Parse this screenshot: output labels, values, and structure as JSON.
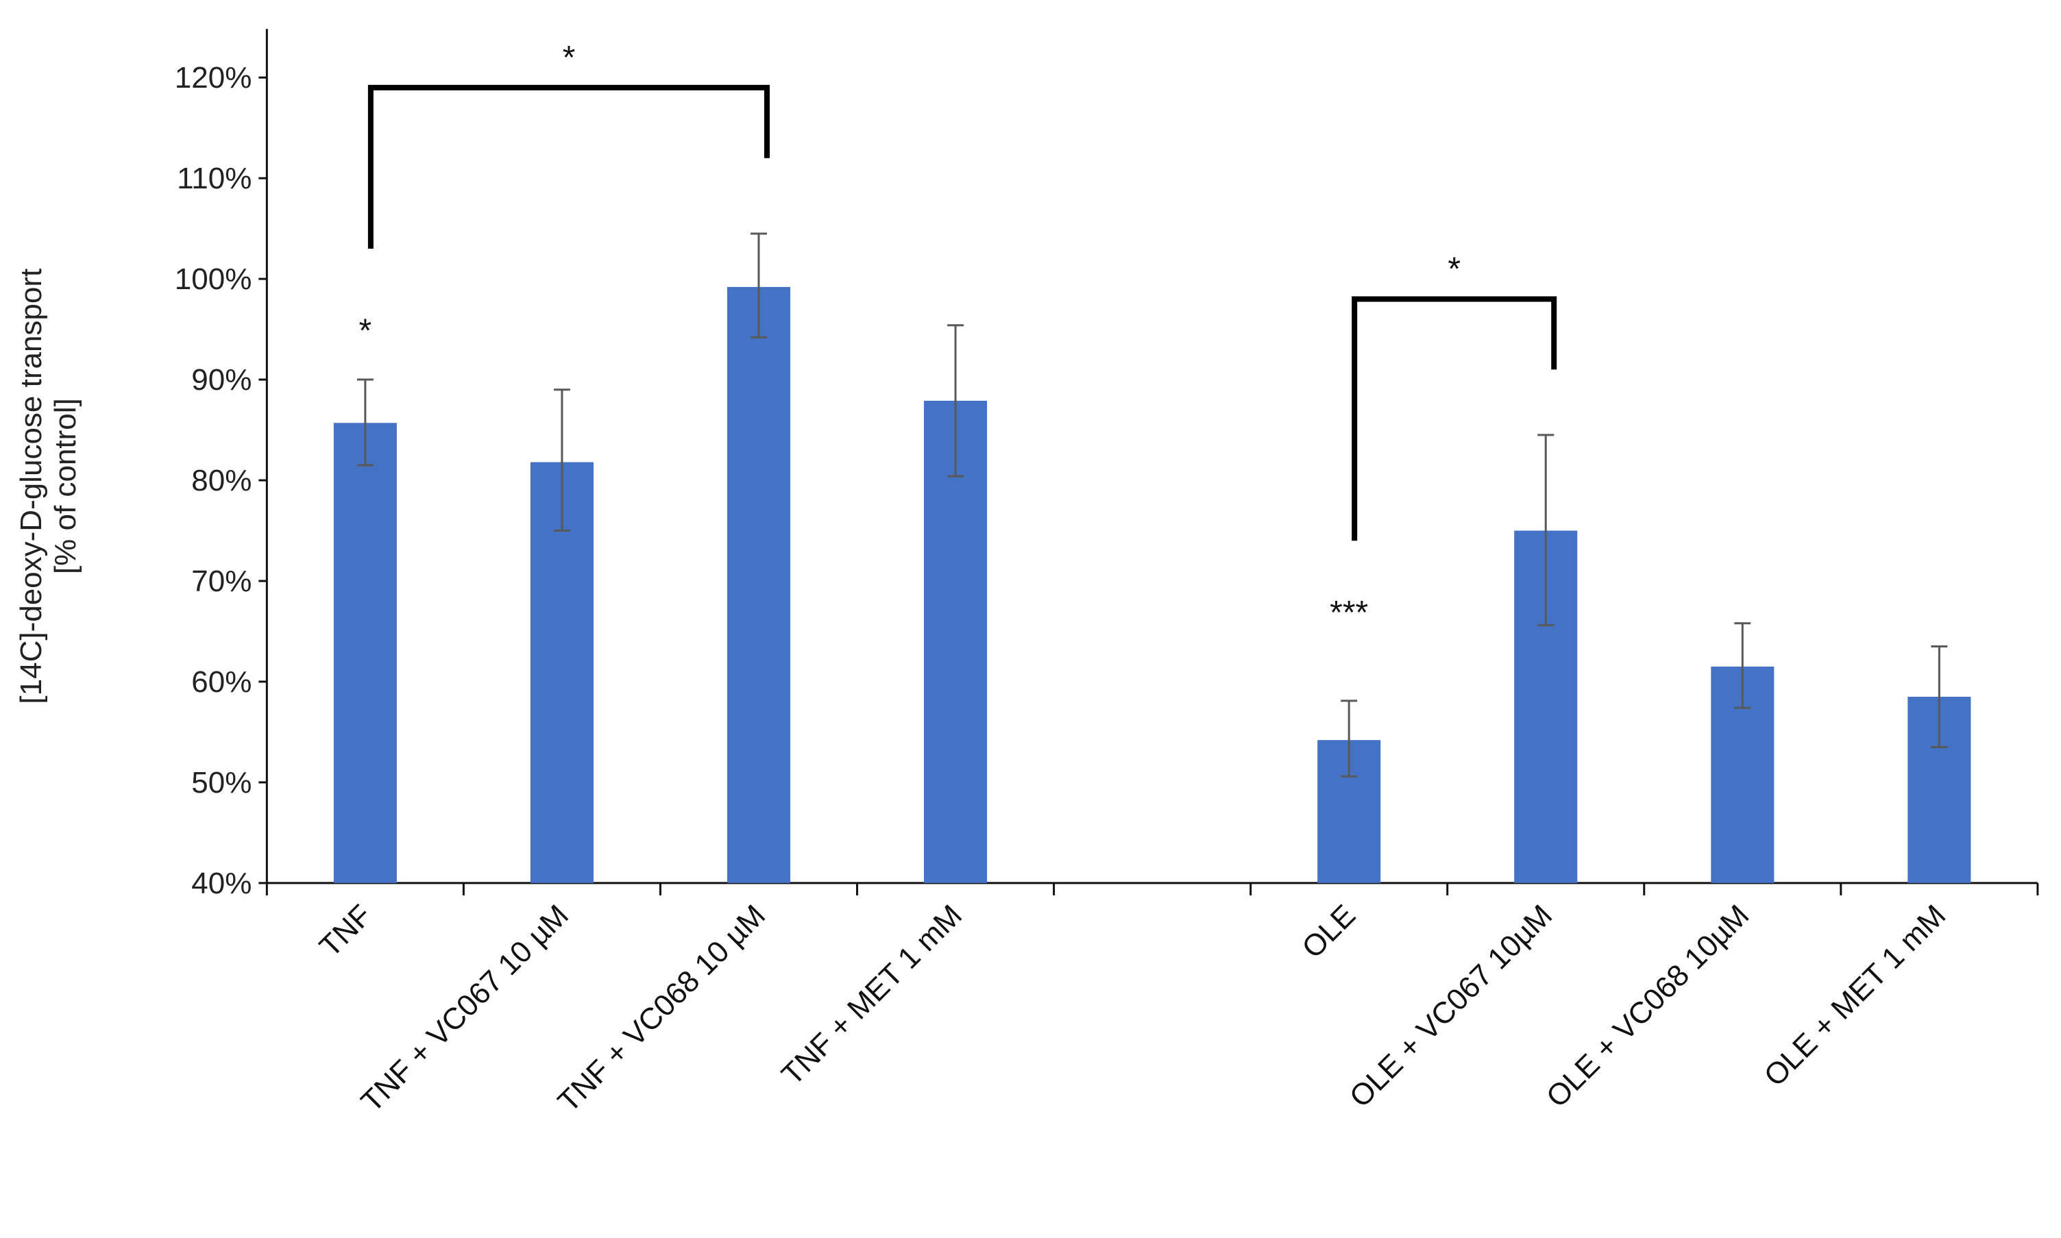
{
  "chart_data": {
    "type": "bar",
    "title": "",
    "xlabel": "",
    "ylabel": "[14C]-deoxy-D-glucose transport [% of control]",
    "ylabel_lines": [
      "[14C]-deoxy-D-glucose transport",
      "[% of control]"
    ],
    "ylim": [
      40,
      120
    ],
    "yticks": [
      "40%",
      "50%",
      "60%",
      "70%",
      "80%",
      "90%",
      "100%",
      "110%",
      "120%"
    ],
    "grid": false,
    "legend": null,
    "bar_color": "#4472C4",
    "categories": [
      "TNF",
      "TNF + VC067 10 µM",
      "TNF + VC068 10 µM",
      "TNF + MET 1 mM",
      "",
      "OLE",
      "OLE + VC067 10µM",
      "OLE + VC068 10µM",
      "OLE + MET 1 mM"
    ],
    "values": [
      85.7,
      81.8,
      99.2,
      87.9,
      null,
      54.2,
      75.0,
      61.5,
      58.5
    ],
    "error_low": [
      81.5,
      75.0,
      94.2,
      80.4,
      null,
      50.6,
      65.6,
      57.4,
      53.5
    ],
    "error_high": [
      90.0,
      89.0,
      104.5,
      95.4,
      null,
      58.1,
      84.5,
      65.8,
      63.5
    ],
    "annotations": [
      {
        "text": "*",
        "category_index": 0,
        "y": 95
      },
      {
        "text": "***",
        "category_index": 5,
        "y": 67
      },
      {
        "text": "*",
        "bracket": [
          0,
          2
        ],
        "y": 119,
        "left_drop_to": 103,
        "right_drop_to": 112
      },
      {
        "text": "*",
        "bracket": [
          5,
          6
        ],
        "y": 98,
        "left_drop_to": 74,
        "right_drop_to": 91
      }
    ]
  }
}
